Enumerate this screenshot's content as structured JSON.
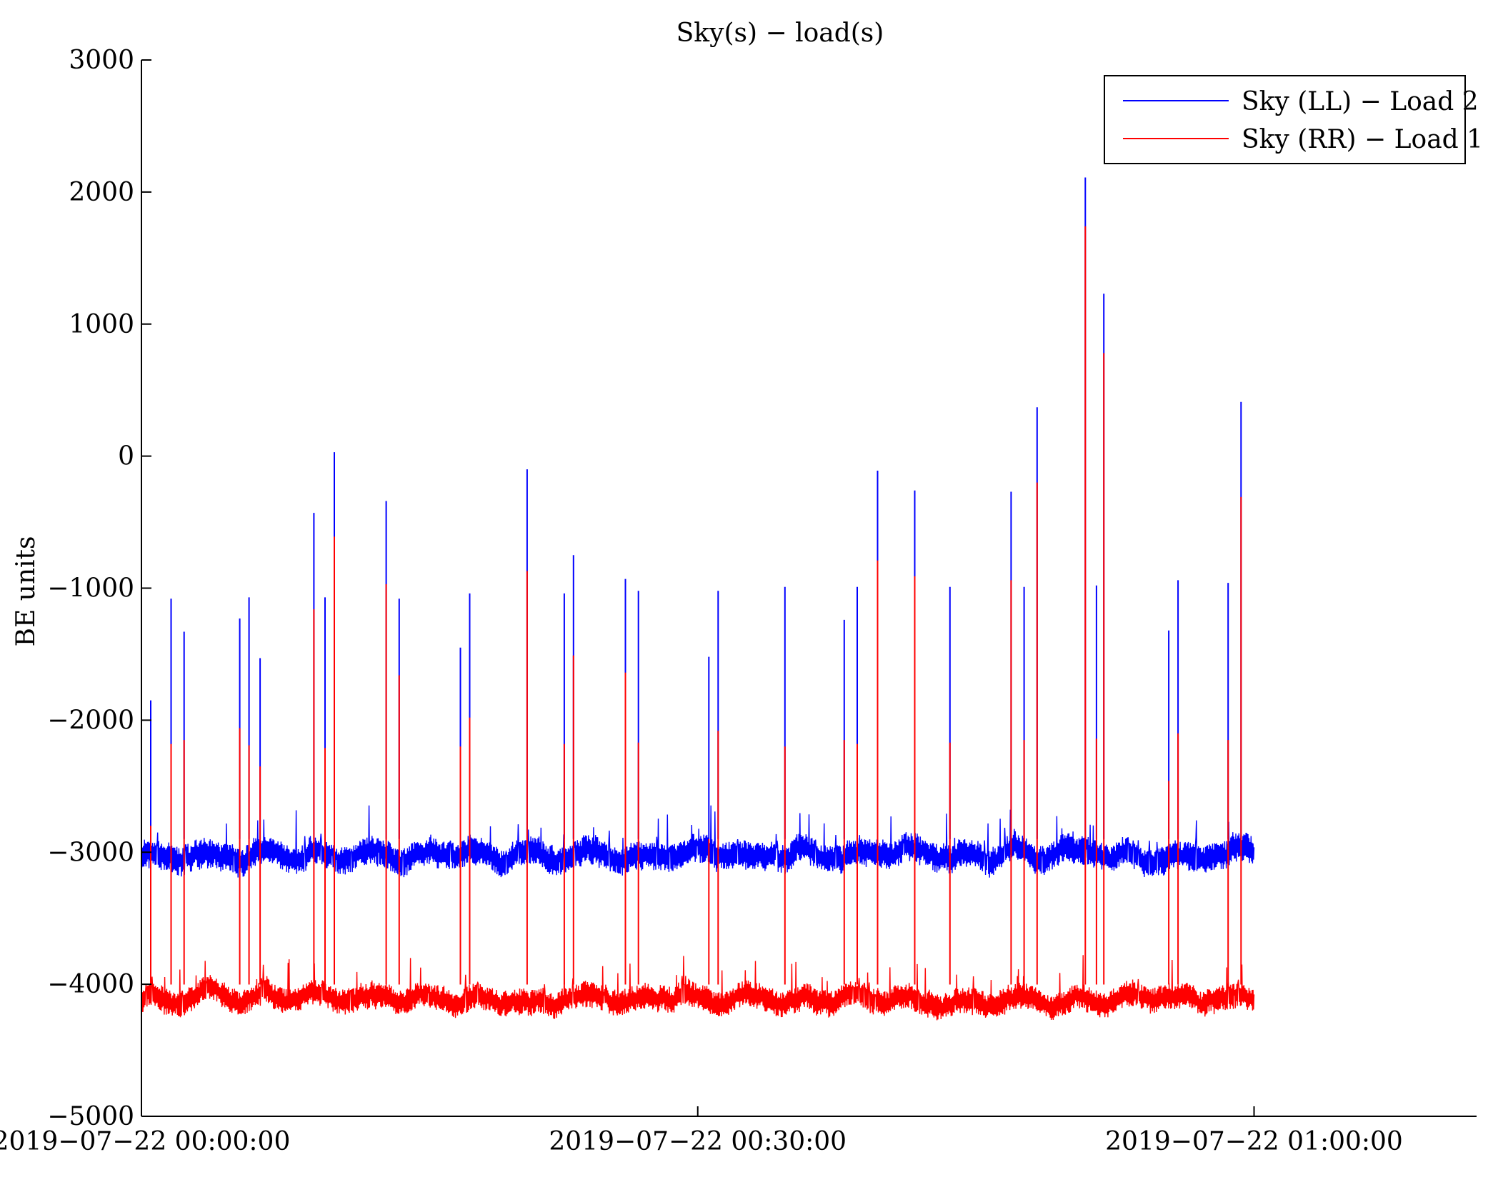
{
  "chart_data": {
    "type": "line",
    "title": "Sky(s) − load(s)",
    "xlabel": "",
    "ylabel": "BE units",
    "xlim": [
      0,
      72
    ],
    "ylim": [
      -5000,
      3000
    ],
    "x_unit": "minutes since 2019-07-22 00:00:00",
    "xticks": [
      {
        "value": 0,
        "label": "2019−07−22 00:00:00"
      },
      {
        "value": 30,
        "label": "2019−07−22 00:30:00"
      },
      {
        "value": 60,
        "label": "2019−07−22 01:00:00"
      }
    ],
    "yticks": [
      {
        "value": 3000,
        "label": "3000"
      },
      {
        "value": 2000,
        "label": "2000"
      },
      {
        "value": 1000,
        "label": "1000"
      },
      {
        "value": 0,
        "label": "0"
      },
      {
        "value": -1000,
        "label": "−1000"
      },
      {
        "value": -2000,
        "label": "−2000"
      },
      {
        "value": -3000,
        "label": "−3000"
      },
      {
        "value": -4000,
        "label": "−4000"
      },
      {
        "value": -5000,
        "label": "−5000"
      }
    ],
    "grid": false,
    "legend_position": "top-right",
    "series": [
      {
        "name": "Sky (LL) − Load 2",
        "color": "#0000ff",
        "baseline": -3020,
        "noise_amplitude": 200,
        "x_end": 60,
        "spikes": [
          {
            "x": 0.5,
            "y": -1850
          },
          {
            "x": 1.6,
            "y": -1080
          },
          {
            "x": 2.3,
            "y": -1330
          },
          {
            "x": 5.3,
            "y": -1230
          },
          {
            "x": 5.8,
            "y": -1070
          },
          {
            "x": 6.4,
            "y": -1530
          },
          {
            "x": 9.3,
            "y": -430
          },
          {
            "x": 9.9,
            "y": -1070
          },
          {
            "x": 10.4,
            "y": 30
          },
          {
            "x": 13.2,
            "y": -340
          },
          {
            "x": 13.9,
            "y": -1080
          },
          {
            "x": 17.2,
            "y": -1450
          },
          {
            "x": 17.7,
            "y": -1040
          },
          {
            "x": 20.8,
            "y": -100
          },
          {
            "x": 22.8,
            "y": -1040
          },
          {
            "x": 23.3,
            "y": -750
          },
          {
            "x": 26.1,
            "y": -930
          },
          {
            "x": 26.8,
            "y": -1020
          },
          {
            "x": 30.6,
            "y": -1520
          },
          {
            "x": 31.1,
            "y": -1020
          },
          {
            "x": 34.7,
            "y": -990
          },
          {
            "x": 37.9,
            "y": -1240
          },
          {
            "x": 38.6,
            "y": -990
          },
          {
            "x": 39.7,
            "y": -110
          },
          {
            "x": 41.7,
            "y": -260
          },
          {
            "x": 43.6,
            "y": -990
          },
          {
            "x": 46.9,
            "y": -270
          },
          {
            "x": 47.6,
            "y": -990
          },
          {
            "x": 48.3,
            "y": 370
          },
          {
            "x": 50.9,
            "y": 2110
          },
          {
            "x": 51.5,
            "y": -980
          },
          {
            "x": 51.9,
            "y": 1230
          },
          {
            "x": 55.4,
            "y": -1320
          },
          {
            "x": 55.9,
            "y": -940
          },
          {
            "x": 58.6,
            "y": -960
          },
          {
            "x": 59.3,
            "y": 410
          }
        ]
      },
      {
        "name": "Sky (RR) − Load 1",
        "color": "#ff0000",
        "baseline": -4110,
        "noise_amplitude": 180,
        "x_end": 60,
        "spikes": [
          {
            "x": 0.5,
            "y": -2800
          },
          {
            "x": 1.6,
            "y": -2180
          },
          {
            "x": 2.3,
            "y": -2150
          },
          {
            "x": 5.3,
            "y": -2060
          },
          {
            "x": 5.8,
            "y": -2190
          },
          {
            "x": 6.4,
            "y": -2350
          },
          {
            "x": 9.3,
            "y": -1160
          },
          {
            "x": 9.9,
            "y": -2210
          },
          {
            "x": 10.4,
            "y": -610
          },
          {
            "x": 13.2,
            "y": -970
          },
          {
            "x": 13.9,
            "y": -1660
          },
          {
            "x": 17.2,
            "y": -2200
          },
          {
            "x": 17.7,
            "y": -1980
          },
          {
            "x": 20.8,
            "y": -870
          },
          {
            "x": 22.8,
            "y": -2180
          },
          {
            "x": 23.3,
            "y": -1510
          },
          {
            "x": 26.1,
            "y": -1640
          },
          {
            "x": 26.8,
            "y": -2170
          },
          {
            "x": 30.6,
            "y": -2900
          },
          {
            "x": 31.1,
            "y": -2080
          },
          {
            "x": 34.7,
            "y": -2200
          },
          {
            "x": 37.9,
            "y": -2150
          },
          {
            "x": 38.6,
            "y": -2180
          },
          {
            "x": 39.7,
            "y": -790
          },
          {
            "x": 41.7,
            "y": -910
          },
          {
            "x": 43.6,
            "y": -2170
          },
          {
            "x": 46.9,
            "y": -940
          },
          {
            "x": 47.6,
            "y": -2150
          },
          {
            "x": 48.3,
            "y": -200
          },
          {
            "x": 50.9,
            "y": 1740
          },
          {
            "x": 51.5,
            "y": -2140
          },
          {
            "x": 51.9,
            "y": 780
          },
          {
            "x": 55.4,
            "y": -2460
          },
          {
            "x": 55.9,
            "y": -2100
          },
          {
            "x": 58.6,
            "y": -2150
          },
          {
            "x": 59.3,
            "y": -310
          }
        ]
      }
    ]
  }
}
